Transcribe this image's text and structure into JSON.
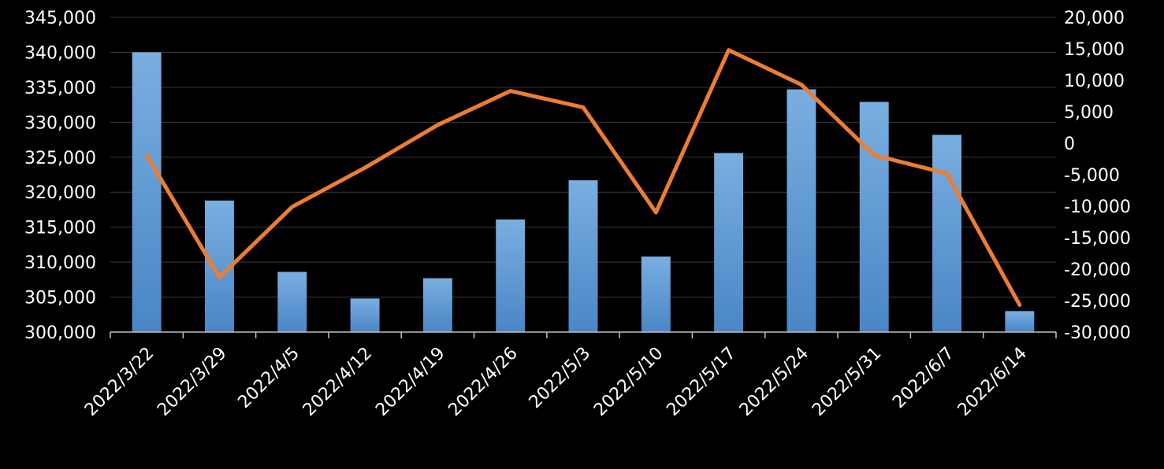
{
  "chart_data": {
    "type": "bar",
    "categories": [
      "2022/3/22",
      "2022/3/29",
      "2022/4/5",
      "2022/4/12",
      "2022/4/19",
      "2022/4/26",
      "2022/5/3",
      "2022/5/10",
      "2022/5/17",
      "2022/5/24",
      "2022/5/31",
      "2022/6/7",
      "2022/6/14"
    ],
    "series": [
      {
        "type": "bar",
        "axis": "left",
        "color": "#5b9bd5",
        "values": [
          340000,
          318800,
          308600,
          304800,
          307700,
          316100,
          321700,
          310800,
          325600,
          334700,
          332900,
          328200,
          303000
        ]
      },
      {
        "type": "line",
        "axis": "right",
        "color": "#ed7d31",
        "values": [
          -1900,
          -21300,
          -10100,
          -3900,
          2900,
          8300,
          5700,
          -11000,
          14800,
          9300,
          -1900,
          -4800,
          -25700
        ]
      }
    ],
    "ylim_left": [
      300000,
      345000
    ],
    "yticks_left": [
      "300,000",
      "305,000",
      "310,000",
      "315,000",
      "320,000",
      "325,000",
      "330,000",
      "335,000",
      "340,000",
      "345,000"
    ],
    "ylim_right": [
      -30000,
      20000
    ],
    "yticks_right": [
      "-30,000",
      "-25,000",
      "-20,000",
      "-15,000",
      "-10,000",
      "-5,000",
      "0",
      "5,000",
      "10,000",
      "15,000",
      "20,000"
    ],
    "grid": true,
    "title": "",
    "xlabel": "",
    "ylabel": ""
  }
}
